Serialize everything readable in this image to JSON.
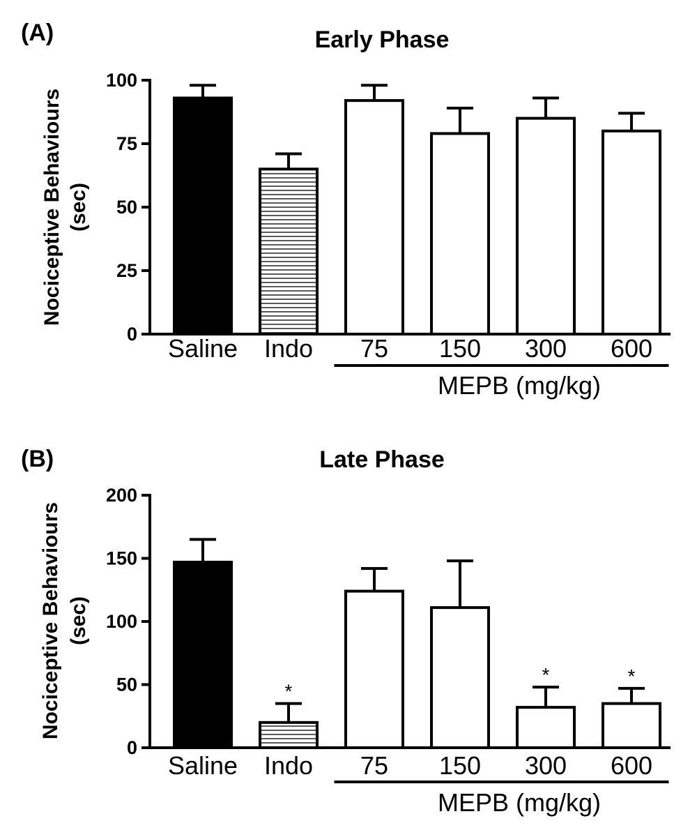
{
  "chart_data": [
    {
      "type": "bar",
      "panel_label": "(A)",
      "title": "Early Phase",
      "ylabel_line1": "Nociceptive Behaviours",
      "ylabel_line2": "(sec)",
      "ylim": [
        0,
        100
      ],
      "yticks": [
        "0",
        "25",
        "50",
        "75",
        "100"
      ],
      "categories": [
        "Saline",
        "Indo",
        "75",
        "150",
        "300",
        "600"
      ],
      "values": [
        93,
        65,
        92,
        79,
        85,
        80
      ],
      "errors": [
        5,
        6,
        6,
        10,
        8,
        7
      ],
      "significance": [
        "",
        "",
        "",
        "",
        "",
        ""
      ],
      "fills": [
        "solid-black",
        "horizontal-hatch",
        "white",
        "white",
        "white",
        "white"
      ],
      "group_label": "MEPB (mg/kg)",
      "group_categories": [
        "75",
        "150",
        "300",
        "600"
      ]
    },
    {
      "type": "bar",
      "panel_label": "(B)",
      "title": "Late Phase",
      "ylabel_line1": "Nociceptive Behaviours",
      "ylabel_line2": "(sec)",
      "ylim": [
        0,
        200
      ],
      "yticks": [
        "0",
        "50",
        "100",
        "150",
        "200"
      ],
      "categories": [
        "Saline",
        "Indo",
        "75",
        "150",
        "300",
        "600"
      ],
      "values": [
        147,
        20,
        124,
        111,
        32,
        35
      ],
      "errors": [
        18,
        15,
        18,
        37,
        16,
        12
      ],
      "significance": [
        "",
        "*",
        "",
        "",
        "*",
        "*"
      ],
      "fills": [
        "solid-black",
        "horizontal-hatch",
        "white",
        "white",
        "white",
        "white"
      ],
      "group_label": "MEPB (mg/kg)",
      "group_categories": [
        "75",
        "150",
        "300",
        "600"
      ]
    }
  ]
}
